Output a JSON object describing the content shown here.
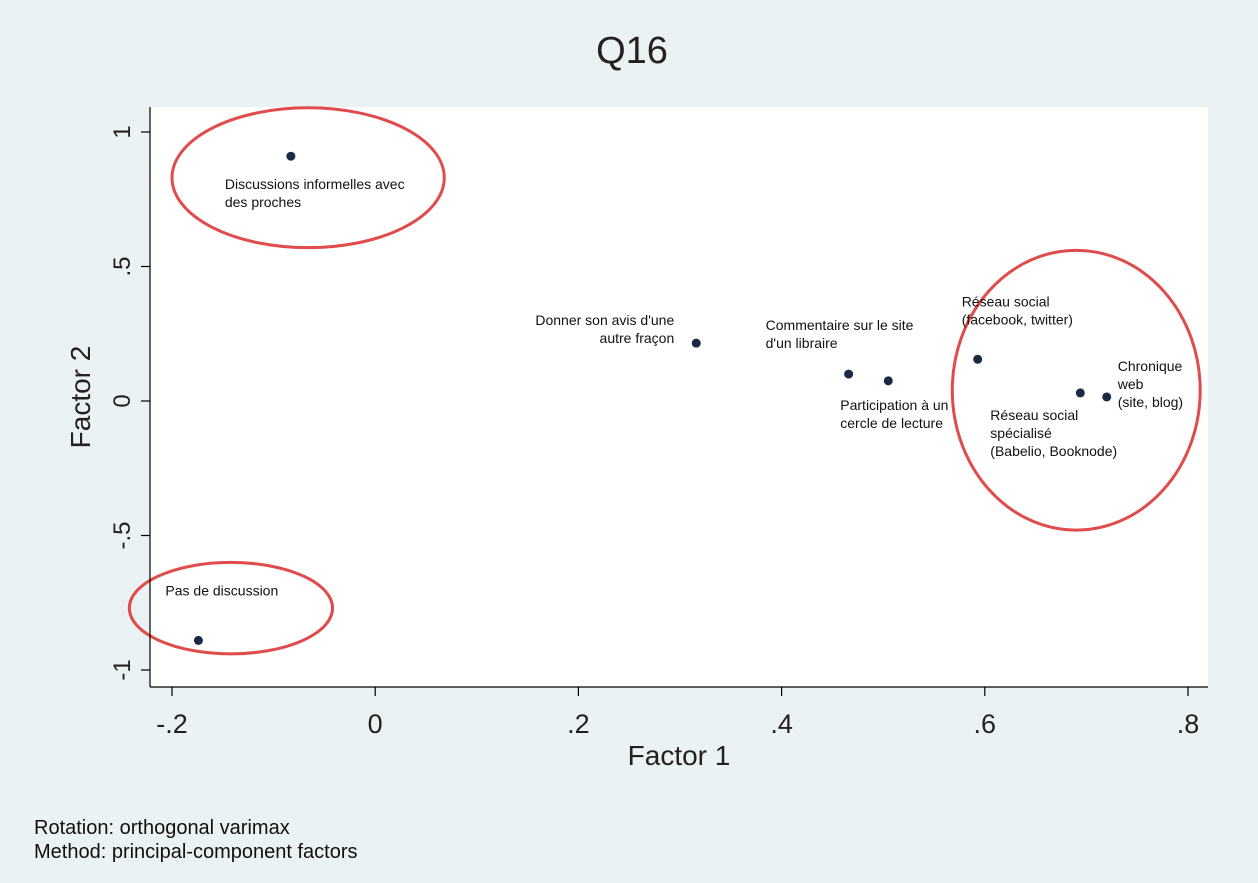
{
  "chart_data": {
    "type": "scatter",
    "title": "Q16",
    "xlabel": "Factor 1",
    "ylabel": "Factor 2",
    "xlim": [
      -0.22,
      0.82
    ],
    "ylim": [
      -1.06,
      1.07
    ],
    "xticks": [
      {
        "value": -0.2,
        "label": "-.2"
      },
      {
        "value": 0,
        "label": "0"
      },
      {
        "value": 0.2,
        "label": ".2"
      },
      {
        "value": 0.4,
        "label": ".4"
      },
      {
        "value": 0.6,
        "label": ".6"
      },
      {
        "value": 0.8,
        "label": ".8"
      }
    ],
    "yticks": [
      {
        "value": -1,
        "label": "-1"
      },
      {
        "value": -0.5,
        "label": "-.5"
      },
      {
        "value": 0,
        "label": "0"
      },
      {
        "value": 0.5,
        "label": ".5"
      },
      {
        "value": 1,
        "label": "1"
      }
    ],
    "grid": false,
    "legend": "none",
    "points": [
      {
        "x": -0.083,
        "y": 0.91,
        "label": [
          "Discussions informelles avec",
          "des proches"
        ],
        "label_pos": "below-right"
      },
      {
        "x": -0.174,
        "y": -0.89,
        "label": [
          "Pas de discussion"
        ],
        "label_pos": "above-left"
      },
      {
        "x": 0.316,
        "y": 0.215,
        "label": [
          "Donner son avis d'une",
          "autre fraçon"
        ],
        "label_pos": "left"
      },
      {
        "x": 0.466,
        "y": 0.1,
        "label": [
          "Commentaire sur le site",
          "d'un libraire"
        ],
        "label_pos": "above-left"
      },
      {
        "x": 0.505,
        "y": 0.075,
        "label": [
          "Participation à un",
          "cercle de lecture"
        ],
        "label_pos": "below-left"
      },
      {
        "x": 0.593,
        "y": 0.155,
        "label": [
          "Réseau social",
          "(facebook, twitter)"
        ],
        "label_pos": "above-left"
      },
      {
        "x": 0.694,
        "y": 0.03,
        "label": [
          "Réseau social",
          "spécialisé",
          "(Babelio, Booknode)"
        ],
        "label_pos": "below-left"
      },
      {
        "x": 0.72,
        "y": 0.015,
        "label": [
          "Chronique",
          "web",
          "(site, blog)"
        ],
        "label_pos": "right"
      }
    ],
    "annotations": [
      {
        "type": "ellipse",
        "color": "#e04b4b",
        "cx": -0.066,
        "cy": 0.83,
        "rx": 0.134,
        "ry": 0.26
      },
      {
        "type": "ellipse",
        "color": "#e04b4b",
        "cx": 0.69,
        "cy": 0.04,
        "rx": 0.122,
        "ry": 0.52
      },
      {
        "type": "ellipse",
        "color": "#e04b4b",
        "cx": -0.142,
        "cy": -0.77,
        "rx": 0.1,
        "ry": 0.17
      }
    ],
    "notes": [
      "Rotation: orthogonal varimax",
      "Method: principal-component factors"
    ],
    "colors": {
      "background": "#eaf2f3",
      "plot_region": "#ffffff",
      "marker": "#1a2a44",
      "ellipse": "#e04b4b",
      "axis": "#000000"
    }
  }
}
